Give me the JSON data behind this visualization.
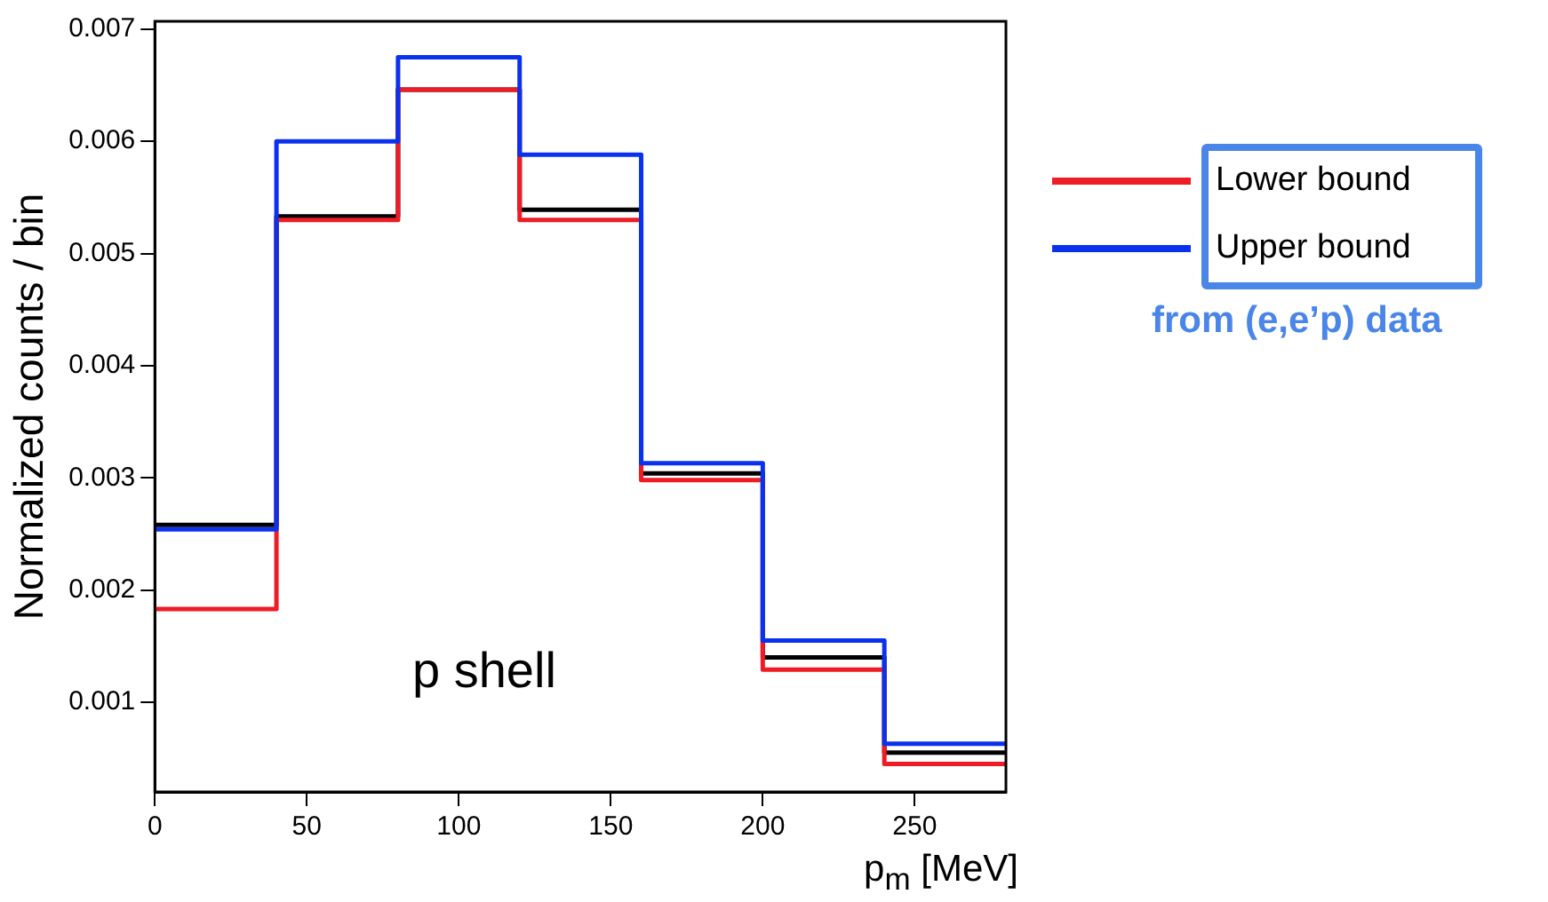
{
  "chart_data": {
    "type": "histogram",
    "xlabel": "p$_{m}$ [MeV]",
    "ylabel": "Normalized counts / bin",
    "bins": [
      0,
      40,
      80,
      120,
      160,
      200,
      240,
      280
    ],
    "series": [
      {
        "color": "#000000",
        "values": [
          0.00258,
          0.00533,
          0.00646,
          0.00539,
          0.00304,
          0.0014,
          0.00055
        ]
      },
      {
        "name": "Lower bound",
        "color": "#ee1c25",
        "values": [
          0.00183,
          0.0053,
          0.00646,
          0.0053,
          0.00298,
          0.00129,
          0.00045
        ]
      },
      {
        "name": "Upper bound",
        "color": "#0a32ee",
        "values": [
          0.00254,
          0.006,
          0.00675,
          0.00588,
          0.00313,
          0.00155,
          0.00063
        ]
      }
    ],
    "xlim": [
      0,
      280
    ],
    "xticks": [
      0,
      50,
      100,
      150,
      200,
      250
    ],
    "ylim": [
      0.0002,
      0.00707
    ],
    "yticks": [
      0.001,
      0.002,
      0.003,
      0.004,
      0.005,
      0.006,
      0.007
    ],
    "grid": false,
    "legend": "right",
    "annotations": [
      "p shell",
      "from (e,e’p) data"
    ]
  }
}
